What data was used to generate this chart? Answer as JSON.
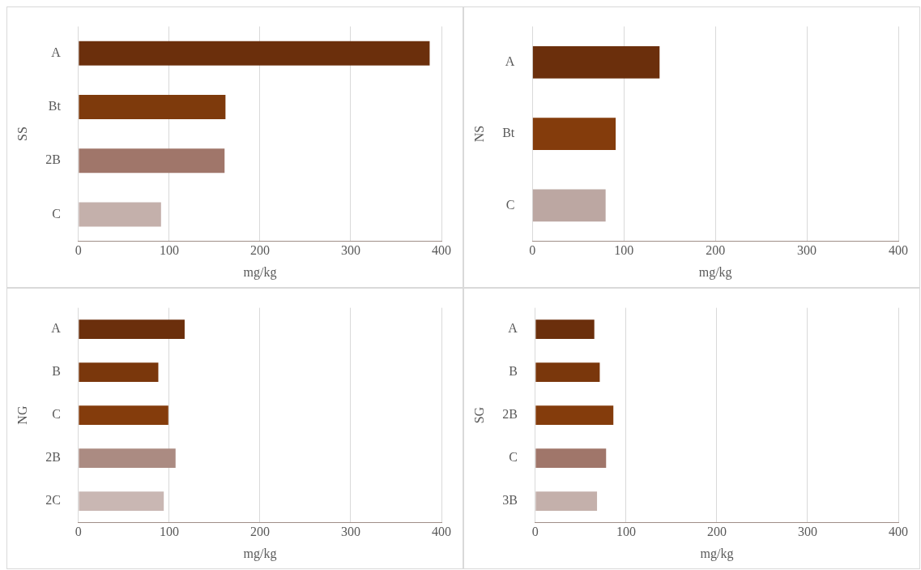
{
  "chart_data": [
    {
      "type": "bar",
      "orientation": "horizontal",
      "ylabel": "SS",
      "xlabel": "mg/kg",
      "categories": [
        "A",
        "Bt",
        "2B",
        "C"
      ],
      "values": [
        387,
        162,
        161,
        91
      ],
      "colors": [
        "#6b2f0c",
        "#7e3a0c",
        "#a0766a",
        "#c4b0ab"
      ],
      "xlim": [
        0,
        400
      ],
      "xticks": [
        0,
        100,
        200,
        300,
        400
      ],
      "grid": "x",
      "legend": false
    },
    {
      "type": "bar",
      "orientation": "horizontal",
      "ylabel": "NS",
      "xlabel": "mg/kg",
      "categories": [
        "A",
        "Bt",
        "C"
      ],
      "values": [
        139,
        91,
        80
      ],
      "colors": [
        "#6b2f0c",
        "#843c0c",
        "#bca7a2"
      ],
      "xlim": [
        0,
        400
      ],
      "xticks": [
        0,
        100,
        200,
        300,
        400
      ],
      "grid": "x",
      "legend": false
    },
    {
      "type": "bar",
      "orientation": "horizontal",
      "ylabel": "NG",
      "xlabel": "mg/kg",
      "categories": [
        "A",
        "B",
        "C",
        "2B",
        "2C"
      ],
      "values": [
        117,
        88,
        99,
        107,
        94
      ],
      "colors": [
        "#6b2f0c",
        "#7a370c",
        "#843c0c",
        "#ab8b82",
        "#c9b7b3"
      ],
      "xlim": [
        0,
        400
      ],
      "xticks": [
        0,
        100,
        200,
        300,
        400
      ],
      "grid": "x",
      "legend": false
    },
    {
      "type": "bar",
      "orientation": "horizontal",
      "ylabel": "SG",
      "xlabel": "mg/kg",
      "categories": [
        "A",
        "B",
        "2B",
        "C",
        "3B"
      ],
      "values": [
        65,
        71,
        86,
        78,
        68
      ],
      "colors": [
        "#6b2f0c",
        "#7a370c",
        "#843c0c",
        "#a0766a",
        "#c4b0ab"
      ],
      "xlim": [
        0,
        400
      ],
      "xticks": [
        0,
        100,
        200,
        300,
        400
      ],
      "grid": "x",
      "legend": false
    }
  ]
}
